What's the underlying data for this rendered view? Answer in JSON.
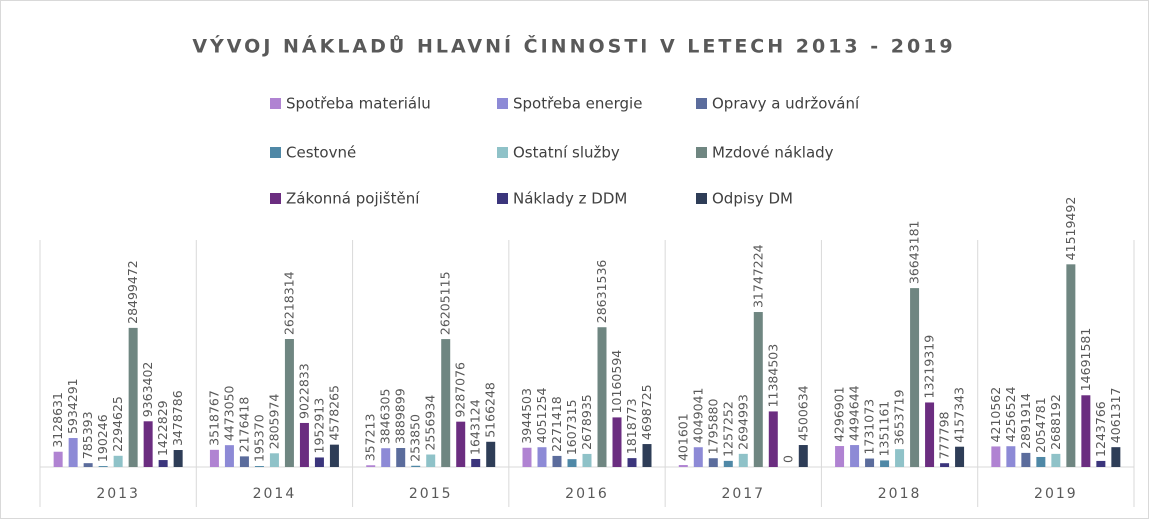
{
  "chart_data": {
    "type": "bar",
    "title": "VÝVOJ NÁKLADŮ HLAVNÍ ČINNOSTI V LETECH 2013 - 2019",
    "categories": [
      "2013",
      "2014",
      "2015",
      "2016",
      "2017",
      "2018",
      "2019"
    ],
    "series": [
      {
        "name": "Spotřeba materiálu",
        "color": "#b083d2",
        "values": [
          3128631,
          3518767,
          357213,
          3944503,
          401601,
          4296901,
          4210562
        ]
      },
      {
        "name": "Spotřeba energie",
        "color": "#8d8ad6",
        "values": [
          5934291,
          4473050,
          3846305,
          4051254,
          4049041,
          4494644,
          4256524
        ]
      },
      {
        "name": "Opravy a udržování",
        "color": "#5b6c9c",
        "values": [
          785393,
          2176418,
          3889899,
          2271418,
          1795880,
          1731073,
          2891914
        ]
      },
      {
        "name": "Cestovné",
        "color": "#4f88a6",
        "values": [
          190246,
          195370,
          253850,
          1607315,
          1257252,
          1351161,
          2054781
        ]
      },
      {
        "name": "Ostatní služby",
        "color": "#8fc2c8",
        "values": [
          2294625,
          2805974,
          2556934,
          2678935,
          2694993,
          3653719,
          2688192
        ]
      },
      {
        "name": "Mzdové náklady",
        "color": "#6f8681",
        "values": [
          28499472,
          26218314,
          26205115,
          28631536,
          31747224,
          36643181,
          41519492
        ]
      },
      {
        "name": "Zákonná pojištění",
        "color": "#6b2d80",
        "values": [
          9363402,
          9022833,
          9287076,
          10160594,
          11384503,
          13219319,
          14691581
        ]
      },
      {
        "name": "Náklady z DDM",
        "color": "#3b357c",
        "values": [
          1422829,
          1952913,
          1643124,
          1818773,
          0,
          777798,
          1243766
        ]
      },
      {
        "name": "Odpisy DM",
        "color": "#2e3d57",
        "values": [
          3478786,
          4578265,
          5166248,
          4698725,
          4500634,
          4157343,
          4061317
        ]
      }
    ]
  }
}
